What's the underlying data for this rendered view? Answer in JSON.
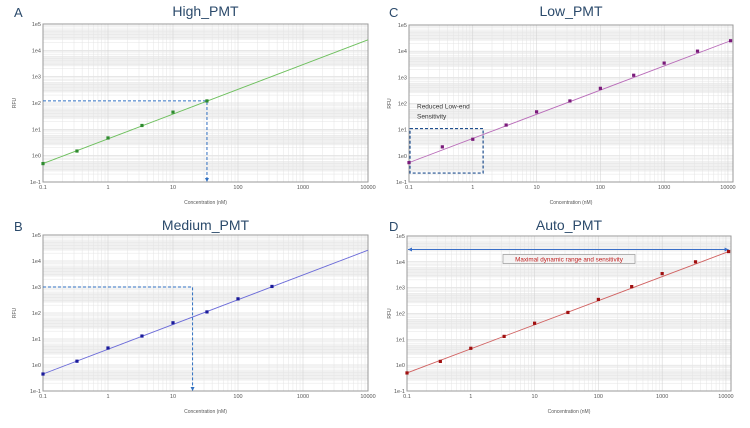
{
  "chart_data": [
    {
      "panel_label": "A",
      "title": "High_PMT",
      "type": "scatter",
      "xlabel": "Concentration (nM)",
      "ylabel": "RFU",
      "xscale": "log",
      "yscale": "log",
      "xlim": [
        0.1,
        10000
      ],
      "ylim": [
        0.1,
        100000
      ],
      "x_ticks": [
        "0.1",
        "1",
        "10",
        "100",
        "1000",
        "10000"
      ],
      "y_ticks": [
        "1e-1",
        "1e0",
        "1e1",
        "1e2",
        "1e3",
        "1e4",
        "1e5"
      ],
      "grid": true,
      "color": "#2e8b2e",
      "line_color": "#6cbf5c",
      "points": {
        "x": [
          0.1,
          0.333,
          1,
          3.33,
          10,
          33.3
        ],
        "y": [
          0.5,
          1.5,
          4.7,
          14,
          45,
          120
        ]
      },
      "fit_line": {
        "x": [
          0.1,
          10000
        ],
        "y": [
          0.5,
          25000
        ]
      },
      "dashed_guide": {
        "x": 33.3,
        "y": 120,
        "color": "#2f6fc0"
      }
    },
    {
      "panel_label": "B",
      "title": "Medium_PMT",
      "type": "scatter",
      "xlabel": "Concentration (nM)",
      "ylabel": "RFU",
      "xscale": "log",
      "yscale": "log",
      "xlim": [
        0.1,
        10000
      ],
      "ylim": [
        0.1,
        100000
      ],
      "x_ticks": [
        "0.1",
        "1",
        "10",
        "100",
        "1000",
        "10000"
      ],
      "y_ticks": [
        "1e-1",
        "1e0",
        "1e1",
        "1e2",
        "1e3",
        "1e4",
        "1e5"
      ],
      "grid": true,
      "color": "#1a1a9a",
      "line_color": "#6a6ad8",
      "points": {
        "x": [
          0.1,
          0.333,
          1,
          3.33,
          10,
          33.3,
          100,
          333
        ],
        "y": [
          0.45,
          1.4,
          4.5,
          13,
          42,
          110,
          350,
          1050
        ]
      },
      "fit_line": {
        "x": [
          0.1,
          10000
        ],
        "y": [
          0.45,
          26000
        ]
      },
      "dashed_guide": {
        "x": 20,
        "y": 1000,
        "color": "#2f6fc0"
      }
    },
    {
      "panel_label": "C",
      "title": "Low_PMT",
      "type": "scatter",
      "xlabel": "Concentration (nM)",
      "ylabel": "RFU",
      "xscale": "log",
      "yscale": "log",
      "xlim": [
        0.1,
        12000
      ],
      "ylim": [
        0.1,
        100000
      ],
      "x_ticks": [
        "0.1",
        "1",
        "10",
        "100",
        "1000",
        "10000"
      ],
      "y_ticks": [
        "1e-1",
        "1e0",
        "1e1",
        "1e2",
        "1e3",
        "1e4",
        "1e5"
      ],
      "grid": true,
      "color": "#7a1a7a",
      "line_color": "#b86ab8",
      "points": {
        "x": [
          0.1,
          0.333,
          1,
          3.33,
          10,
          33.3,
          100,
          333,
          1000,
          3333,
          11000
        ],
        "y": [
          0.55,
          2.2,
          4.3,
          15,
          48,
          125,
          380,
          1200,
          3500,
          10000,
          25000
        ]
      },
      "fit_line": {
        "x": [
          0.1,
          11000
        ],
        "y": [
          0.55,
          25000
        ]
      },
      "annotation_box": {
        "x": [
          0.1,
          1.4
        ],
        "y": [
          0.22,
          11
        ],
        "text": "Reduced Low-end Sensitivity",
        "color": "#1f4f8f"
      }
    },
    {
      "panel_label": "D",
      "title": "Auto_PMT",
      "type": "scatter",
      "xlabel": "Concentration (nM)",
      "ylabel": "RFU",
      "xscale": "log",
      "yscale": "log",
      "xlim": [
        0.1,
        12000
      ],
      "ylim": [
        0.1,
        100000
      ],
      "x_ticks": [
        "0.1",
        "1",
        "10",
        "100",
        "1000",
        "10000"
      ],
      "y_ticks": [
        "1e-1",
        "1e0",
        "1e1",
        "1e2",
        "1e3",
        "1e4",
        "1e5"
      ],
      "grid": true,
      "color": "#a01010",
      "line_color": "#d06060",
      "points": {
        "x": [
          0.1,
          0.333,
          1,
          3.33,
          10,
          33.3,
          100,
          333,
          1000,
          3333,
          11000
        ],
        "y": [
          0.5,
          1.4,
          4.5,
          13,
          42,
          110,
          350,
          1100,
          3500,
          10000,
          25000
        ]
      },
      "fit_line": {
        "x": [
          0.1,
          11000
        ],
        "y": [
          0.5,
          25000
        ]
      },
      "range_arrow": {
        "x": [
          0.1,
          11000
        ],
        "y": 30000,
        "text": "Maximal dynamic range and sensitivity",
        "color": "#3a6fc8",
        "text_color": "#c02020"
      }
    }
  ]
}
